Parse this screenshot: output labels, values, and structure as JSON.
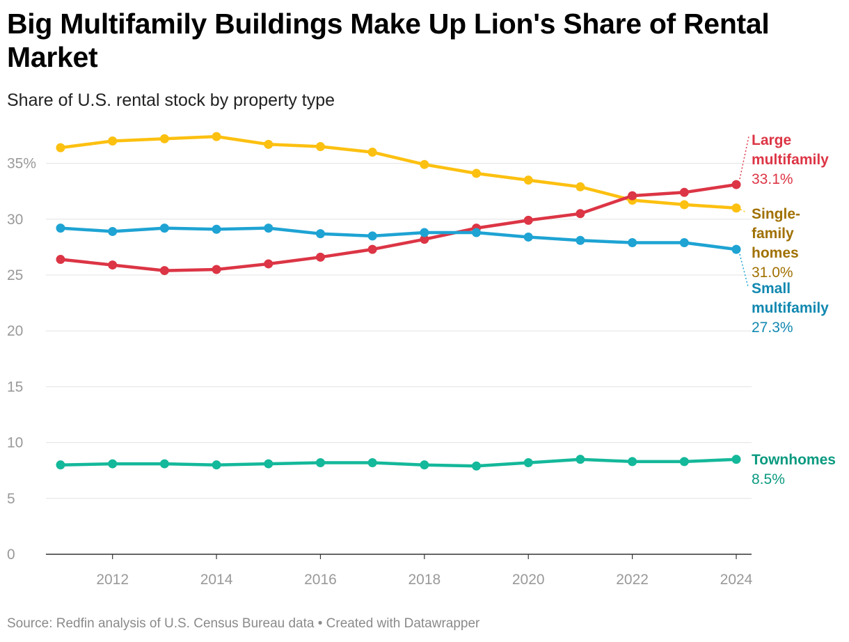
{
  "chart_data": {
    "type": "line",
    "title": "Big Multifamily Buildings Make Up Lion's Share of Rental Market",
    "subtitle": "Share of U.S. rental stock by property type",
    "source": "Source: Redfin analysis of U.S. Census Bureau data • Created with Datawrapper",
    "x": [
      2011,
      2012,
      2013,
      2014,
      2015,
      2016,
      2017,
      2018,
      2019,
      2020,
      2021,
      2022,
      2023,
      2024
    ],
    "x_ticks": [
      2012,
      2014,
      2016,
      2018,
      2020,
      2022,
      2024
    ],
    "x_tick_labels": [
      "2012",
      "2014",
      "2016",
      "2018",
      "2020",
      "2022",
      "2024"
    ],
    "y_ticks": [
      0,
      5,
      10,
      15,
      20,
      25,
      30,
      35
    ],
    "y_tick_labels": [
      "0",
      "5",
      "10",
      "15",
      "20",
      "25",
      "30",
      "35%"
    ],
    "ylim": [
      0,
      37.5
    ],
    "grid": true,
    "series": [
      {
        "name": "Single-family homes",
        "label_lines": [
          "Single-",
          "family",
          "homes"
        ],
        "end_label": "31.0%",
        "color": "#fcc010",
        "label_color": "#a07000",
        "values": [
          36.4,
          37.0,
          37.2,
          37.4,
          36.7,
          36.5,
          36.0,
          34.9,
          34.1,
          33.5,
          32.9,
          31.7,
          31.3,
          31.0
        ]
      },
      {
        "name": "Large multifamily",
        "label_lines": [
          "Large",
          "multifamily"
        ],
        "end_label": "33.1%",
        "color": "#dc3545",
        "label_color": "#dc3545",
        "values": [
          26.4,
          25.9,
          25.4,
          25.5,
          26.0,
          26.6,
          27.3,
          28.2,
          29.2,
          29.9,
          30.5,
          32.1,
          32.4,
          33.1
        ]
      },
      {
        "name": "Small multifamily",
        "label_lines": [
          "Small",
          "multifamily"
        ],
        "end_label": "27.3%",
        "color": "#1ea3d3",
        "label_color": "#1188b0",
        "values": [
          29.2,
          28.9,
          29.2,
          29.1,
          29.2,
          28.7,
          28.5,
          28.8,
          28.8,
          28.4,
          28.1,
          27.9,
          27.9,
          27.3
        ]
      },
      {
        "name": "Townhomes",
        "label_lines": [
          "Townhomes"
        ],
        "end_label": "8.5%",
        "color": "#14b89a",
        "label_color": "#0a9a80",
        "values": [
          8.0,
          8.1,
          8.1,
          8.0,
          8.1,
          8.2,
          8.2,
          8.0,
          7.9,
          8.2,
          8.5,
          8.3,
          8.3,
          8.5
        ]
      }
    ]
  }
}
